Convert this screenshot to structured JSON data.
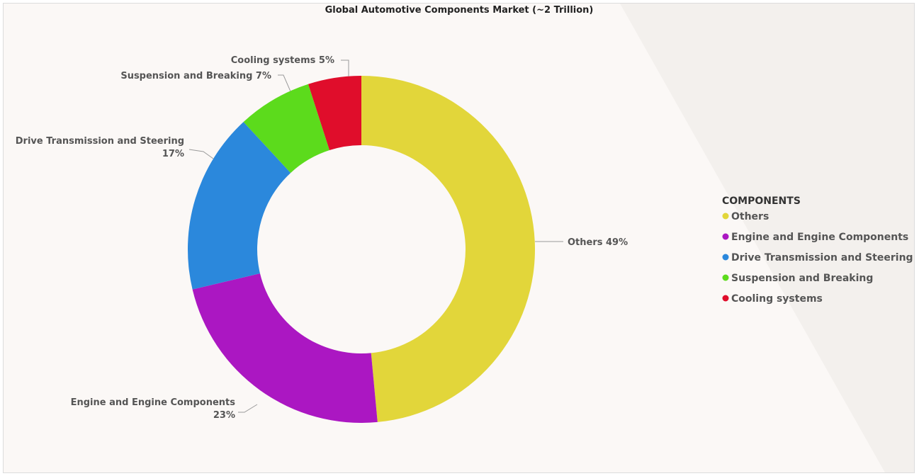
{
  "chart_data": {
    "type": "pie",
    "title": "Global Automotive Components Market (~2 Trillion)",
    "legend_title": "COMPONENTS",
    "legend_position": "right",
    "categories": [
      "Others",
      "Engine and Engine Components",
      "Drive Transmission and Steering",
      "Suspension and Breaking",
      "Cooling systems"
    ],
    "values": [
      49,
      23,
      17,
      7,
      5
    ],
    "colors": [
      "#e2d63a",
      "#ab17c2",
      "#2b88dc",
      "#5cdb1c",
      "#e00d2b"
    ],
    "data_labels": [
      [
        "Others 49%"
      ],
      [
        "Engine and Engine Components",
        "23%"
      ],
      [
        "Drive Transmission and Steering",
        "17%"
      ],
      [
        "Suspension and Breaking 7%"
      ],
      [
        "Cooling systems 5%"
      ]
    ]
  }
}
